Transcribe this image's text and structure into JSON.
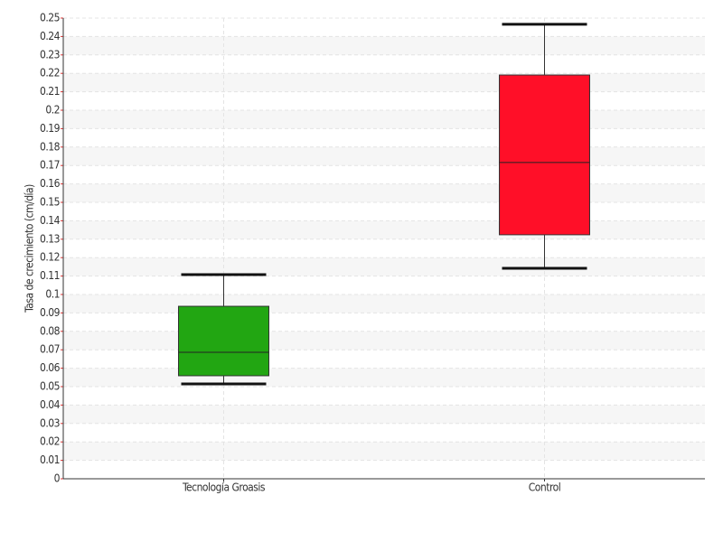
{
  "chart_data": {
    "type": "box",
    "y_label": "Tasa de crecimiento (cm/día)",
    "categories": [
      "Tecnología Groasis",
      "Control"
    ],
    "boxes": [
      {
        "min": 0.0515,
        "q1": 0.0559,
        "median": 0.0686,
        "q3": 0.0936,
        "max": 0.1108,
        "color": "#22a612"
      },
      {
        "min": 0.1142,
        "q1": 0.1324,
        "median": 0.1716,
        "q3": 0.2191,
        "max": 0.2466,
        "color": "#ff0f28"
      }
    ],
    "ylim": [
      0,
      0.25
    ],
    "yticks": [
      0,
      0.01,
      0.02,
      0.03,
      0.04,
      0.05,
      0.06,
      0.07,
      0.08,
      0.09,
      0.1,
      0.11,
      0.12,
      0.13,
      0.14,
      0.15,
      0.16,
      0.17,
      0.18,
      0.19,
      0.2,
      0.21,
      0.22,
      0.23,
      0.24,
      0.25
    ],
    "grid": true
  }
}
